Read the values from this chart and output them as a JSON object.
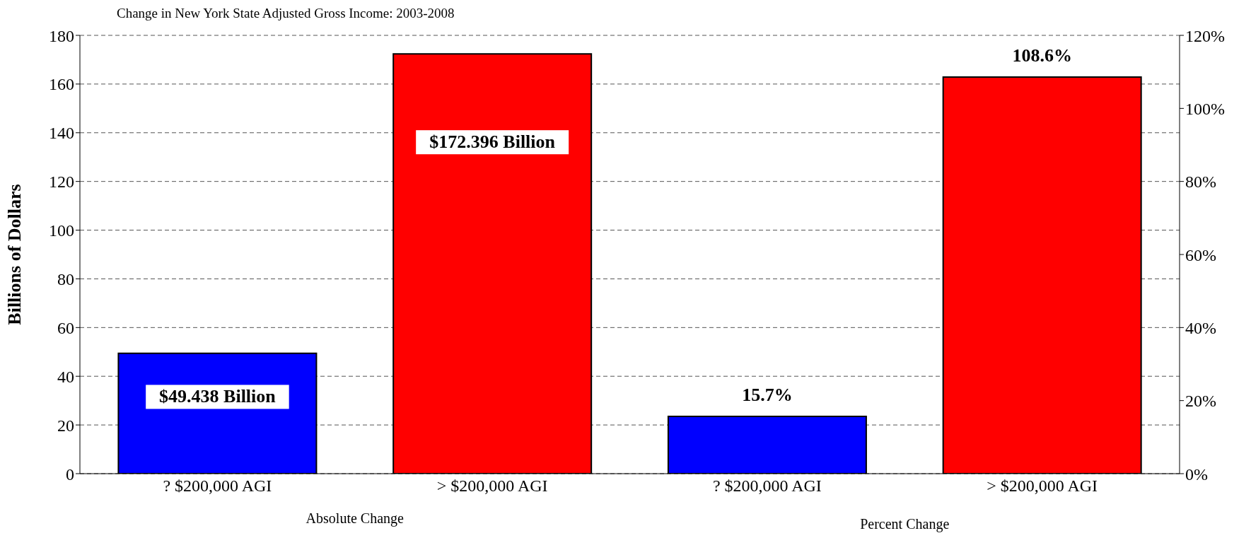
{
  "chart_data": {
    "type": "bar",
    "title": "Change in New York State Adjusted Gross Income:  2003-2008",
    "ylabel": "Billions of Dollars",
    "categories": [
      "? $200,000 AGI",
      "> $200,000 AGI",
      "? $200,000 AGI",
      "> $200,000 AGI"
    ],
    "series": [
      {
        "values": [
          49.438,
          172.396,
          null,
          null
        ],
        "colors": [
          "#0000ff",
          "#ff0000",
          "#0000ff",
          "#ff0000"
        ],
        "value_labels": [
          "$49.438 Billion",
          "$172.396 Billion",
          null,
          null
        ]
      },
      {
        "axis": "y2",
        "values": [
          null,
          null,
          15.7,
          108.6
        ],
        "colors": [
          "#0000ff",
          "#ff0000",
          "#0000ff",
          "#ff0000"
        ],
        "value_labels": [
          null,
          null,
          "15.7%",
          "108.6%"
        ]
      }
    ],
    "ylim": [
      0,
      180
    ],
    "yticks": [
      0,
      20,
      40,
      60,
      80,
      100,
      120,
      140,
      160,
      180
    ],
    "y2lim": [
      0,
      120
    ],
    "y2ticks": [
      {
        "value": 0,
        "label": "0%"
      },
      {
        "value": 20,
        "label": "20%"
      },
      {
        "value": 40,
        "label": "40%"
      },
      {
        "value": 60,
        "label": "60%"
      },
      {
        "value": 80,
        "label": "80%"
      },
      {
        "value": 100,
        "label": "100%"
      },
      {
        "value": 120,
        "label": "120%"
      }
    ],
    "grid": "y",
    "annotations": [
      "Absolute Change",
      "Percent Change"
    ]
  }
}
